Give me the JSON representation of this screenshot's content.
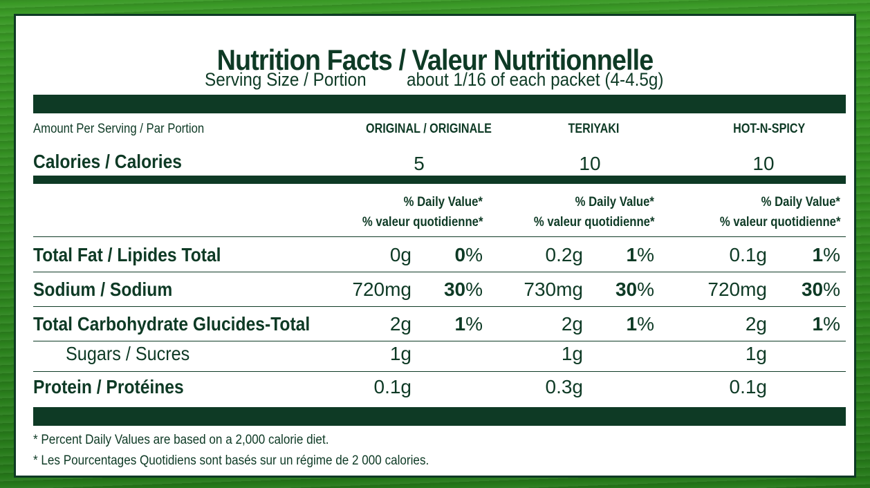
{
  "title": "Nutrition Facts / Valeur Nutritionnelle",
  "serving": {
    "label": "Serving Size / Portion",
    "value": "about 1/16 of each packet (4-4.5g)"
  },
  "amount_header": "Amount Per Serving / Par Portion",
  "columns": [
    "ORIGINAL / ORIGINALE",
    "TERIYAKI",
    "HOT-N-SPICY"
  ],
  "calories": {
    "label": "Calories / Calories",
    "values": [
      "5",
      "10",
      "10"
    ]
  },
  "dv_header": {
    "line1": "% Daily Value*",
    "line2": "% valeur quotidienne*"
  },
  "rows": {
    "fat": {
      "label": "Total Fat / Lipides Total",
      "amounts": [
        "0g",
        "0.2g",
        "0.1g"
      ],
      "pct_nums": [
        "0",
        "1",
        "1"
      ]
    },
    "sodium": {
      "label": "Sodium / Sodium",
      "amounts": [
        "720mg",
        "730mg",
        "720mg"
      ],
      "pct_nums": [
        "30",
        "30",
        "30"
      ]
    },
    "carb": {
      "label": "Total Carbohydrate Glucides-Total",
      "amounts": [
        "2g",
        "2g",
        "2g"
      ],
      "pct_nums": [
        "1",
        "1",
        "1"
      ]
    },
    "sugars": {
      "label": "Sugars / Sucres",
      "amounts": [
        "1g",
        "1g",
        "1g"
      ]
    },
    "protein": {
      "label": "Protein / Protéines",
      "amounts": [
        "0.1g",
        "0.3g",
        "0.1g"
      ]
    }
  },
  "pct_symbol": "%",
  "footnotes": [
    "* Percent Daily Values are based on a 2,000 calorie diet.",
    "* Les Pourcentages Quotidiens sont basés sur un régime de 2 000 calories."
  ],
  "colors": {
    "ink": "#0e3a25",
    "background": "#2f8a1f",
    "panel": "#ffffff"
  }
}
